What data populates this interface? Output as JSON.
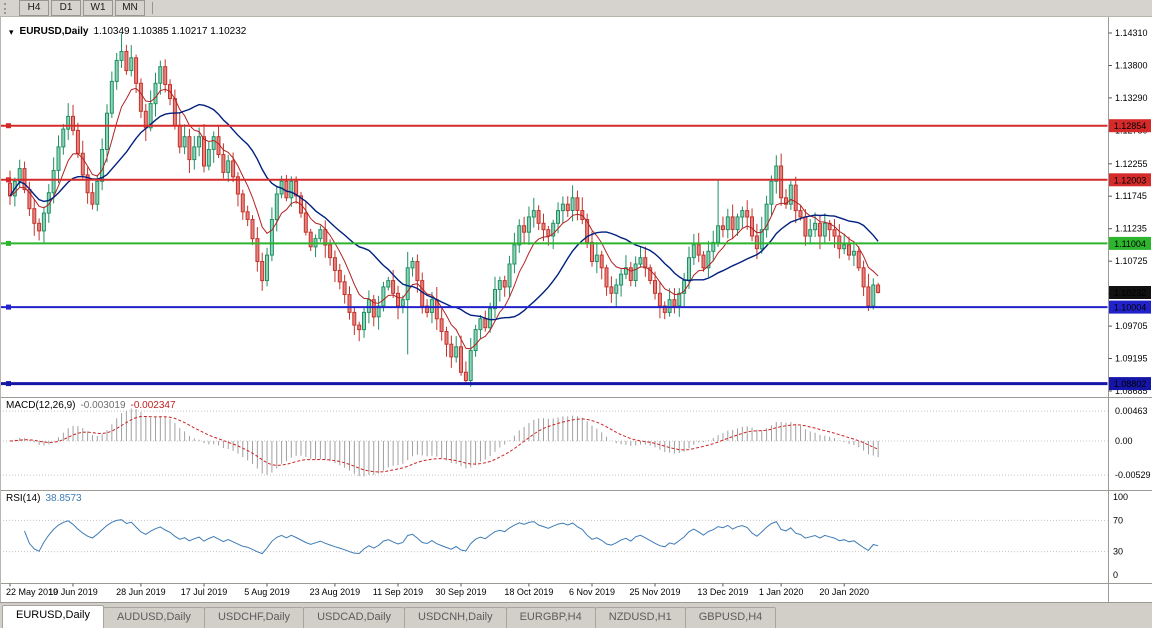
{
  "toolbar": {
    "buttons": [
      "H4",
      "D1",
      "W1",
      "MN"
    ]
  },
  "chart": {
    "title": "EURUSD,Daily",
    "quote_text": "1.10349 1.10385 1.10217 1.10232",
    "menu_icon": "▾"
  },
  "chart_data": {
    "type": "candlestick",
    "symbol": "EURUSD",
    "timeframe": "Daily",
    "title": "EURUSD,Daily",
    "x_labels": [
      "22 May 2019",
      "10 Jun 2019",
      "28 Jun 2019",
      "17 Jul 2019",
      "5 Aug 2019",
      "23 Aug 2019",
      "11 Sep 2019",
      "30 Sep 2019",
      "18 Oct 2019",
      "6 Nov 2019",
      "25 Nov 2019",
      "13 Dec 2019",
      "1 Jan 2020",
      "20 Jan 2020"
    ],
    "x_label_indices": [
      0,
      13,
      27,
      40,
      53,
      67,
      80,
      93,
      107,
      120,
      133,
      147,
      159,
      172
    ],
    "y_axis": {
      "top": 1.1431,
      "bottom": 1.08685,
      "ticks": [
        "1.14310",
        "1.13800",
        "1.13290",
        "1.12780",
        "1.12255",
        "1.11745",
        "1.11235",
        "1.10725",
        "1.10215",
        "1.09705",
        "1.09195",
        "1.08685"
      ]
    },
    "first_open": 1.1195,
    "closes": [
      1.1175,
      1.1198,
      1.1218,
      1.1185,
      1.1155,
      1.1132,
      1.112,
      1.1148,
      1.118,
      1.1215,
      1.1252,
      1.128,
      1.13,
      1.1278,
      1.1242,
      1.1208,
      1.118,
      1.1162,
      1.1198,
      1.1248,
      1.1305,
      1.1355,
      1.1388,
      1.1402,
      1.1372,
      1.1392,
      1.1352,
      1.1308,
      1.1282,
      1.132,
      1.1352,
      1.1378,
      1.135,
      1.1328,
      1.1286,
      1.1252,
      1.1268,
      1.1232,
      1.1252,
      1.1268,
      1.1222,
      1.1248,
      1.1268,
      1.124,
      1.1212,
      1.123,
      1.1205,
      1.1178,
      1.115,
      1.1138,
      1.1108,
      1.1072,
      1.1042,
      1.1082,
      1.1138,
      1.1178,
      1.1198,
      1.1172,
      1.1198,
      1.1175,
      1.1148,
      1.1118,
      1.1095,
      1.1108,
      1.1122,
      1.1098,
      1.1078,
      1.1058,
      1.104,
      1.102,
      1.0992,
      1.0972,
      1.0965,
      1.0992,
      1.1012,
      1.0985,
      1.1002,
      1.1032,
      1.1042,
      1.1022,
      1.1002,
      1.1012,
      1.1062,
      1.1072,
      1.1042,
      1.1002,
      1.0992,
      1.1012,
      1.0982,
      1.0962,
      1.0942,
      1.0922,
      1.0938,
      1.0898,
      1.0885,
      1.0932,
      1.0965,
      1.0982,
      1.0968,
      1.0998,
      1.1028,
      1.1042,
      1.1032,
      1.1068,
      1.1098,
      1.1128,
      1.1118,
      1.1142,
      1.1152,
      1.1132,
      1.1122,
      1.1112,
      1.1132,
      1.1152,
      1.1162,
      1.1152,
      1.1172,
      1.1152,
      1.1138,
      1.1102,
      1.1072,
      1.1082,
      1.1062,
      1.1032,
      1.1022,
      1.1035,
      1.1052,
      1.1062,
      1.1042,
      1.1068,
      1.1078,
      1.1062,
      1.1042,
      1.1022,
      1.1002,
      1.0992,
      1.1012,
      1.1002,
      1.1022,
      1.1042,
      1.1078,
      1.1098,
      1.1082,
      1.1062,
      1.1088,
      1.1102,
      1.1128,
      1.1122,
      1.1142,
      1.1122,
      1.1142,
      1.1152,
      1.1142,
      1.1112,
      1.1092,
      1.1122,
      1.1162,
      1.1198,
      1.1222,
      1.1172,
      1.1162,
      1.1192,
      1.1152,
      1.1142,
      1.1112,
      1.1122,
      1.1132,
      1.1112,
      1.1132,
      1.1122,
      1.1112,
      1.1092,
      1.1098,
      1.1082,
      1.1088,
      1.1062,
      1.1032,
      1.1002,
      1.1035,
      1.10232
    ],
    "wick_overrides": {
      "23": {
        "high": 1.143
      },
      "25": {
        "high": 1.1412
      },
      "52": {
        "low": 1.1026
      },
      "82": {
        "low": 1.0926,
        "high": 1.1087
      },
      "94": {
        "low": 1.0879
      },
      "146": {
        "high": 1.12
      },
      "158": {
        "high": 1.1239
      },
      "177": {
        "low": 1.0994
      },
      "179": {
        "open": 1.10349,
        "high": 1.10385,
        "low": 1.10217
      }
    },
    "hlines": [
      {
        "price": 1.12854,
        "label": "1.12854",
        "color": "#d42a2a",
        "width": 2
      },
      {
        "price": 1.12003,
        "label": "1.12003",
        "color": "#d42a2a",
        "width": 2
      },
      {
        "price": 1.11004,
        "label": "1.11004",
        "color": "#2db52d",
        "width": 2
      },
      {
        "price": 1.10004,
        "label": "1.10004",
        "color": "#2222cc",
        "width": 2
      },
      {
        "price": 1.08802,
        "label": "1.08802",
        "color": "#1515a8",
        "width": 3
      }
    ],
    "current_price": {
      "value": 1.10232,
      "label": "1.10232",
      "color": "#111111"
    },
    "moving_averages": [
      {
        "type": "ema",
        "period": 8,
        "color": "#b22222"
      },
      {
        "type": "sma",
        "period": 21,
        "color": "#002080"
      }
    ],
    "indicators": [
      {
        "name": "MACD",
        "title": "MACD(12,26,9)",
        "params": "12,26,9",
        "value_main": "-0.003019",
        "value_signal": "-0.002347",
        "scale_labels": [
          "0.00463",
          "0.00",
          "-0.00529"
        ],
        "scale_values": [
          0.00463,
          0,
          -0.00529
        ]
      },
      {
        "name": "RSI",
        "title": "RSI(14)",
        "params": "14",
        "value_main": "38.8573",
        "scale_labels": [
          "100",
          "70",
          "30",
          "0"
        ],
        "scale_values": [
          100,
          70,
          30,
          0
        ],
        "levels": [
          70,
          30
        ]
      }
    ],
    "colors": {
      "bull_fill": "#8fd3b6",
      "bull_stroke": "#1f8f63",
      "bear_fill": "#e4837f",
      "bear_stroke": "#c4332b",
      "ma_fast": "#b22222",
      "ma_slow": "#002080",
      "macd_histogram": "#a0a0a0",
      "macd_signal": "#cc2222",
      "rsi_line": "#3f7cb6"
    }
  },
  "tabs": [
    {
      "label": "EURUSD,Daily",
      "active": true
    },
    {
      "label": "AUDUSD,Daily",
      "active": false
    },
    {
      "label": "USDCHF,Daily",
      "active": false
    },
    {
      "label": "USDCAD,Daily",
      "active": false
    },
    {
      "label": "USDCNH,Daily",
      "active": false
    },
    {
      "label": "EURGBP,H4",
      "active": false
    },
    {
      "label": "NZDUSD,H1",
      "active": false
    },
    {
      "label": "GBPUSD,H4",
      "active": false
    }
  ]
}
